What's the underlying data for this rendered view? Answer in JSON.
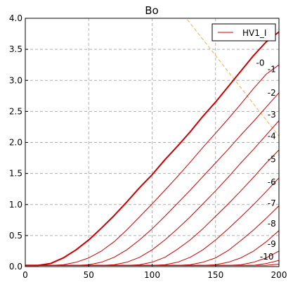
{
  "chart_data": {
    "type": "line",
    "title": "Bo",
    "xlabel": "",
    "ylabel": "",
    "xlim": [
      0,
      200
    ],
    "ylim": [
      0,
      4.0
    ],
    "x_ticks": [
      "0",
      "50",
      "100",
      "150",
      "200"
    ],
    "y_ticks": [
      "0.0",
      "0.5",
      "1.0",
      "1.5",
      "2.0",
      "2.5",
      "3.0",
      "3.5",
      "4.0"
    ],
    "grid": true,
    "legend": {
      "position": "top-right",
      "entries": [
        "HV1_I"
      ]
    },
    "colors": {
      "series": "#cc0000",
      "load_line": "#f0b050",
      "grid": "#b0b0b0"
    },
    "x": [
      0,
      10,
      20,
      30,
      40,
      50,
      60,
      70,
      80,
      90,
      100,
      110,
      120,
      130,
      140,
      150,
      160,
      170,
      180,
      190,
      200
    ],
    "series": [
      {
        "name": "-0",
        "values": [
          0.02,
          0.02,
          0.05,
          0.14,
          0.27,
          0.43,
          0.62,
          0.82,
          1.04,
          1.27,
          1.48,
          1.72,
          1.94,
          2.17,
          2.42,
          2.65,
          2.9,
          3.15,
          3.4,
          3.62,
          3.78
        ]
      },
      {
        "name": "-1",
        "values": [
          0.02,
          0.02,
          0.02,
          0.03,
          0.07,
          0.14,
          0.25,
          0.4,
          0.59,
          0.8,
          1.01,
          1.23,
          1.45,
          1.68,
          1.92,
          2.15,
          2.38,
          2.62,
          2.87,
          3.1,
          3.25
        ]
      },
      {
        "name": "-2",
        "values": [
          0.02,
          0.02,
          0.02,
          0.02,
          0.02,
          0.03,
          0.07,
          0.15,
          0.27,
          0.43,
          0.61,
          0.81,
          1.02,
          1.23,
          1.45,
          1.67,
          1.89,
          2.12,
          2.34,
          2.57,
          2.8
        ]
      },
      {
        "name": "-3",
        "values": [
          0.02,
          0.02,
          0.02,
          0.02,
          0.02,
          0.02,
          0.02,
          0.03,
          0.07,
          0.15,
          0.27,
          0.43,
          0.61,
          0.8,
          1.01,
          1.22,
          1.44,
          1.67,
          1.89,
          2.12,
          2.35
        ]
      },
      {
        "name": "-4",
        "values": [
          0.02,
          0.02,
          0.02,
          0.02,
          0.02,
          0.02,
          0.02,
          0.02,
          0.02,
          0.03,
          0.07,
          0.15,
          0.28,
          0.43,
          0.61,
          0.81,
          1.01,
          1.22,
          1.44,
          1.67,
          1.88
        ]
      },
      {
        "name": "-5",
        "values": [
          0.02,
          0.02,
          0.02,
          0.02,
          0.02,
          0.02,
          0.02,
          0.02,
          0.02,
          0.02,
          0.02,
          0.03,
          0.07,
          0.15,
          0.27,
          0.43,
          0.61,
          0.8,
          1.0,
          1.21,
          1.43
        ]
      },
      {
        "name": "-6",
        "values": [
          0.02,
          0.02,
          0.02,
          0.02,
          0.02,
          0.02,
          0.02,
          0.02,
          0.02,
          0.02,
          0.02,
          0.02,
          0.02,
          0.03,
          0.07,
          0.14,
          0.26,
          0.42,
          0.59,
          0.78,
          0.98
        ]
      },
      {
        "name": "-7",
        "values": [
          0.02,
          0.02,
          0.02,
          0.02,
          0.02,
          0.02,
          0.02,
          0.02,
          0.02,
          0.02,
          0.02,
          0.02,
          0.02,
          0.02,
          0.02,
          0.03,
          0.07,
          0.14,
          0.25,
          0.4,
          0.58
        ]
      },
      {
        "name": "-8",
        "values": [
          0.02,
          0.02,
          0.02,
          0.02,
          0.02,
          0.02,
          0.02,
          0.02,
          0.02,
          0.02,
          0.02,
          0.02,
          0.02,
          0.02,
          0.02,
          0.02,
          0.02,
          0.03,
          0.07,
          0.14,
          0.25
        ]
      },
      {
        "name": "-9",
        "values": [
          0.02,
          0.02,
          0.02,
          0.02,
          0.02,
          0.02,
          0.02,
          0.02,
          0.02,
          0.02,
          0.02,
          0.02,
          0.02,
          0.02,
          0.02,
          0.02,
          0.02,
          0.02,
          0.02,
          0.05,
          0.1
        ]
      },
      {
        "name": "-10",
        "values": [
          0.02,
          0.02,
          0.02,
          0.02,
          0.02,
          0.02,
          0.02,
          0.02,
          0.02,
          0.02,
          0.02,
          0.02,
          0.02,
          0.02,
          0.02,
          0.02,
          0.02,
          0.02,
          0.02,
          0.02,
          0.04
        ]
      }
    ],
    "curve_labels": [
      {
        "text": "-0",
        "x": 182,
        "y": 3.28
      },
      {
        "text": "-1",
        "x": 191,
        "y": 3.18
      },
      {
        "text": "-2",
        "x": 191,
        "y": 2.8
      },
      {
        "text": "-3",
        "x": 191,
        "y": 2.45
      },
      {
        "text": "-4",
        "x": 191,
        "y": 2.1
      },
      {
        "text": "-5",
        "x": 191,
        "y": 1.73
      },
      {
        "text": "-6",
        "x": 191,
        "y": 1.36
      },
      {
        "text": "-7",
        "x": 191,
        "y": 1.02
      },
      {
        "text": "-8",
        "x": 191,
        "y": 0.69
      },
      {
        "text": "-9",
        "x": 191,
        "y": 0.36
      },
      {
        "text": "-10",
        "x": 185,
        "y": 0.16
      }
    ],
    "load_line": {
      "x": [
        125,
        200
      ],
      "y": [
        4.05,
        2.1
      ]
    }
  }
}
